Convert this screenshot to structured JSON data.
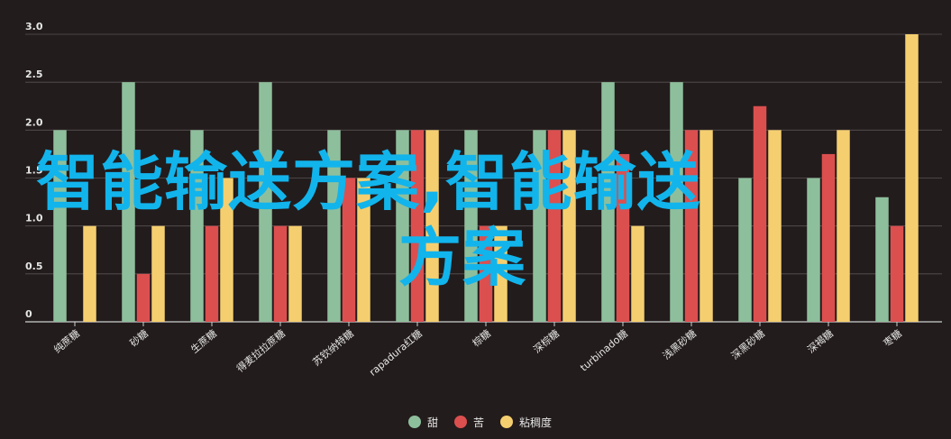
{
  "chart_data": {
    "type": "bar",
    "title": "",
    "xlabel": "",
    "ylabel": "",
    "ylim": [
      0,
      3.0
    ],
    "yticks": [
      "0",
      "0.5",
      "1.0",
      "1.5",
      "2.0",
      "2.5",
      "3.0"
    ],
    "grid": true,
    "legend_position": "bottom-center",
    "categories": [
      "纯蔗糖",
      "砂糖",
      "生蔗糖",
      "得麦拉拉蔗糖",
      "苏钦纳特糖",
      "rapadura红糖",
      "棕糖",
      "深棕糖",
      "turbinado糖",
      "浅黑砂糖",
      "深黑砂糖",
      "深褐糖",
      "枣糖"
    ],
    "series": [
      {
        "name": "甜",
        "color": "#8ebf9c",
        "values": [
          2.0,
          2.5,
          2.0,
          2.5,
          2.0,
          2.0,
          2.0,
          2.0,
          2.5,
          2.5,
          1.5,
          1.5,
          1.3
        ]
      },
      {
        "name": "苦",
        "color": "#dc4f4f",
        "values": [
          0,
          0.5,
          1.0,
          1.0,
          1.5,
          2.0,
          1.0,
          2.0,
          1.75,
          2.0,
          2.25,
          1.75,
          1.0
        ]
      },
      {
        "name": "粘稠度",
        "color": "#f5cf6f",
        "values": [
          1.0,
          1.0,
          1.5,
          1.0,
          1.5,
          2.0,
          1.0,
          2.0,
          1.0,
          2.0,
          2.0,
          2.0,
          3.0
        ]
      }
    ]
  },
  "overlay": {
    "line1": "智能输送方案,智能输送",
    "line2": "方案"
  }
}
